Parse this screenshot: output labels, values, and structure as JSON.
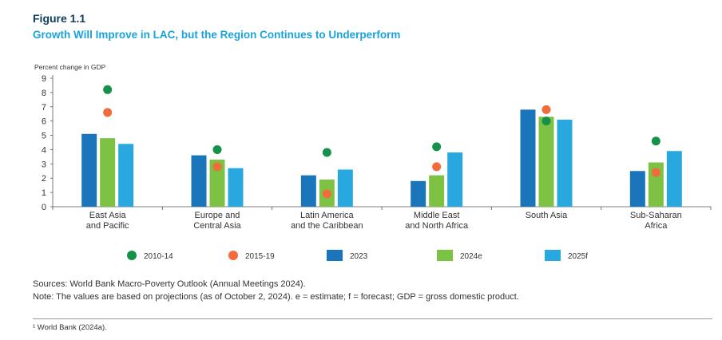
{
  "figure_label": "Figure 1.1",
  "figure_title": "Growth Will Improve in LAC, but the Region Continues to Underperform",
  "sources": "Sources: World Bank Macro-Poverty Outlook (Annual Meetings 2024).",
  "note": "Note: The values are based on projections (as of October 2, 2024). e = estimate; f = forecast; GDP = gross domestic product.",
  "footnote": "¹ World Bank (2024a).",
  "colors": {
    "s2010": "#16914a",
    "s2015": "#f26b3a",
    "b2023": "#1b75bb",
    "b2024": "#7dc243",
    "b2025": "#29a8e0"
  },
  "chart_data": {
    "type": "bar",
    "ylabel": "Percent change in GDP",
    "ylim": [
      0,
      9
    ],
    "yticks": [
      0,
      1,
      2,
      3,
      4,
      5,
      6,
      7,
      8,
      9
    ],
    "categories": [
      [
        "East Asia",
        "and Pacific"
      ],
      [
        "Europe and",
        "Central Asia"
      ],
      [
        "Latin America",
        "and the Caribbean"
      ],
      [
        "Middle East",
        "and North Africa"
      ],
      [
        "South Asia"
      ],
      [
        "Sub-Saharan",
        "Africa"
      ]
    ],
    "series": [
      {
        "name": "2023",
        "kind": "bar",
        "color": "#1b75bb",
        "values": [
          5.1,
          3.6,
          2.2,
          1.8,
          6.8,
          2.5
        ]
      },
      {
        "name": "2024e",
        "kind": "bar",
        "color": "#7dc243",
        "values": [
          4.8,
          3.3,
          1.9,
          2.2,
          6.3,
          3.1
        ]
      },
      {
        "name": "2025f",
        "kind": "bar",
        "color": "#29a8e0",
        "values": [
          4.4,
          2.7,
          2.6,
          3.8,
          6.1,
          3.9
        ]
      },
      {
        "name": "2010-14",
        "kind": "dot",
        "color": "#16914a",
        "values": [
          8.2,
          4.0,
          3.8,
          4.2,
          6.0,
          4.6
        ]
      },
      {
        "name": "2015-19",
        "kind": "dot",
        "color": "#f26b3a",
        "values": [
          6.6,
          2.8,
          0.9,
          2.8,
          6.8,
          2.4
        ]
      }
    ],
    "legend": [
      {
        "label": "2010-14",
        "shape": "dot",
        "color": "#16914a"
      },
      {
        "label": "2015-19",
        "shape": "dot",
        "color": "#f26b3a"
      },
      {
        "label": "2023",
        "shape": "square",
        "color": "#1b75bb"
      },
      {
        "label": "2024e",
        "shape": "square",
        "color": "#7dc243"
      },
      {
        "label": "2025f",
        "shape": "square",
        "color": "#29a8e0"
      }
    ],
    "legend_position": "bottom",
    "grid": false
  }
}
